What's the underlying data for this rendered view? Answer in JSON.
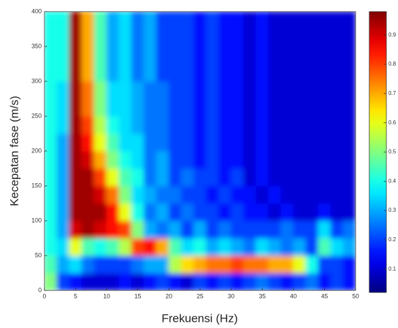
{
  "chart_data": {
    "type": "heatmap",
    "x_label": "Frekuensi (Hz)",
    "y_label": "Kecepatan fase (m/s)",
    "xlim": [
      0,
      50
    ],
    "ylim": [
      0,
      400
    ],
    "xticks": [
      0,
      5,
      10,
      15,
      20,
      25,
      30,
      35,
      40,
      45,
      50
    ],
    "yticks": [
      0,
      50,
      100,
      150,
      200,
      250,
      300,
      350,
      400
    ],
    "colormap": "jet",
    "clim": [
      0.02,
      0.98
    ],
    "cticks": [
      0.1,
      0.2,
      0.3,
      0.4,
      0.5,
      0.6,
      0.7,
      0.8,
      0.9
    ],
    "z": [
      [
        0.5,
        0.2,
        0.15,
        0.1,
        0.1,
        0.1,
        0.15,
        0.1,
        0.15,
        0.2,
        0.15,
        0.1,
        0.2,
        0.15,
        0.2,
        0.15,
        0.2,
        0.25,
        0.2,
        0.15,
        0.2,
        0.25,
        0.15,
        0.2,
        0.15
      ],
      [
        0.45,
        0.3,
        0.35,
        0.25,
        0.2,
        0.2,
        0.2,
        0.25,
        0.3,
        0.3,
        0.55,
        0.65,
        0.7,
        0.75,
        0.75,
        0.8,
        0.75,
        0.75,
        0.7,
        0.7,
        0.6,
        0.4,
        0.2,
        0.2,
        0.15
      ],
      [
        0.4,
        0.35,
        0.6,
        0.45,
        0.4,
        0.45,
        0.55,
        0.8,
        0.85,
        0.7,
        0.45,
        0.35,
        0.4,
        0.3,
        0.35,
        0.3,
        0.25,
        0.35,
        0.3,
        0.25,
        0.3,
        0.2,
        0.45,
        0.35,
        0.3
      ],
      [
        0.4,
        0.3,
        0.9,
        0.95,
        0.9,
        0.85,
        0.8,
        0.5,
        0.3,
        0.25,
        0.3,
        0.2,
        0.3,
        0.2,
        0.25,
        0.2,
        0.2,
        0.2,
        0.2,
        0.25,
        0.2,
        0.2,
        0.35,
        0.2,
        0.25
      ],
      [
        0.4,
        0.3,
        0.95,
        0.95,
        0.95,
        0.85,
        0.6,
        0.4,
        0.25,
        0.3,
        0.2,
        0.25,
        0.2,
        0.2,
        0.15,
        0.2,
        0.15,
        0.15,
        0.1,
        0.15,
        0.1,
        0.1,
        0.15,
        0.1,
        0.1
      ],
      [
        0.4,
        0.3,
        0.95,
        0.95,
        0.9,
        0.75,
        0.5,
        0.35,
        0.3,
        0.25,
        0.25,
        0.2,
        0.2,
        0.15,
        0.2,
        0.15,
        0.15,
        0.1,
        0.15,
        0.1,
        0.1,
        0.1,
        0.1,
        0.1,
        0.1
      ],
      [
        0.4,
        0.3,
        0.95,
        0.95,
        0.8,
        0.6,
        0.45,
        0.4,
        0.25,
        0.3,
        0.2,
        0.25,
        0.2,
        0.2,
        0.15,
        0.2,
        0.1,
        0.15,
        0.1,
        0.1,
        0.1,
        0.1,
        0.1,
        0.1,
        0.1
      ],
      [
        0.4,
        0.3,
        0.95,
        0.9,
        0.7,
        0.5,
        0.4,
        0.35,
        0.25,
        0.3,
        0.2,
        0.2,
        0.15,
        0.2,
        0.15,
        0.15,
        0.1,
        0.15,
        0.1,
        0.1,
        0.1,
        0.1,
        0.1,
        0.1,
        0.1
      ],
      [
        0.4,
        0.3,
        0.95,
        0.85,
        0.6,
        0.45,
        0.35,
        0.35,
        0.25,
        0.25,
        0.2,
        0.2,
        0.15,
        0.2,
        0.15,
        0.15,
        0.1,
        0.15,
        0.1,
        0.1,
        0.1,
        0.1,
        0.1,
        0.1,
        0.1
      ],
      [
        0.4,
        0.35,
        0.95,
        0.8,
        0.55,
        0.4,
        0.35,
        0.3,
        0.25,
        0.25,
        0.2,
        0.2,
        0.15,
        0.2,
        0.15,
        0.15,
        0.1,
        0.15,
        0.1,
        0.1,
        0.1,
        0.1,
        0.1,
        0.1,
        0.1
      ],
      [
        0.4,
        0.35,
        0.95,
        0.75,
        0.5,
        0.35,
        0.35,
        0.3,
        0.25,
        0.25,
        0.2,
        0.2,
        0.15,
        0.2,
        0.15,
        0.15,
        0.1,
        0.15,
        0.1,
        0.1,
        0.1,
        0.1,
        0.1,
        0.1,
        0.1
      ],
      [
        0.4,
        0.35,
        0.95,
        0.75,
        0.5,
        0.35,
        0.35,
        0.3,
        0.25,
        0.25,
        0.2,
        0.2,
        0.15,
        0.2,
        0.15,
        0.15,
        0.1,
        0.15,
        0.1,
        0.1,
        0.1,
        0.1,
        0.1,
        0.1,
        0.1
      ],
      [
        0.4,
        0.4,
        0.95,
        0.7,
        0.45,
        0.3,
        0.35,
        0.25,
        0.3,
        0.2,
        0.2,
        0.2,
        0.15,
        0.2,
        0.15,
        0.15,
        0.1,
        0.15,
        0.1,
        0.1,
        0.1,
        0.1,
        0.1,
        0.1,
        0.1
      ],
      [
        0.4,
        0.4,
        0.95,
        0.7,
        0.45,
        0.3,
        0.35,
        0.25,
        0.3,
        0.2,
        0.2,
        0.2,
        0.15,
        0.2,
        0.15,
        0.15,
        0.1,
        0.15,
        0.1,
        0.1,
        0.1,
        0.1,
        0.1,
        0.1,
        0.1
      ],
      [
        0.4,
        0.4,
        0.95,
        0.7,
        0.45,
        0.3,
        0.35,
        0.25,
        0.3,
        0.2,
        0.2,
        0.2,
        0.15,
        0.2,
        0.15,
        0.15,
        0.1,
        0.15,
        0.1,
        0.1,
        0.1,
        0.1,
        0.1,
        0.1,
        0.1
      ],
      [
        0.4,
        0.4,
        0.95,
        0.7,
        0.45,
        0.3,
        0.35,
        0.25,
        0.3,
        0.2,
        0.2,
        0.2,
        0.15,
        0.2,
        0.15,
        0.15,
        0.1,
        0.15,
        0.1,
        0.1,
        0.1,
        0.1,
        0.1,
        0.1,
        0.1
      ]
    ]
  }
}
